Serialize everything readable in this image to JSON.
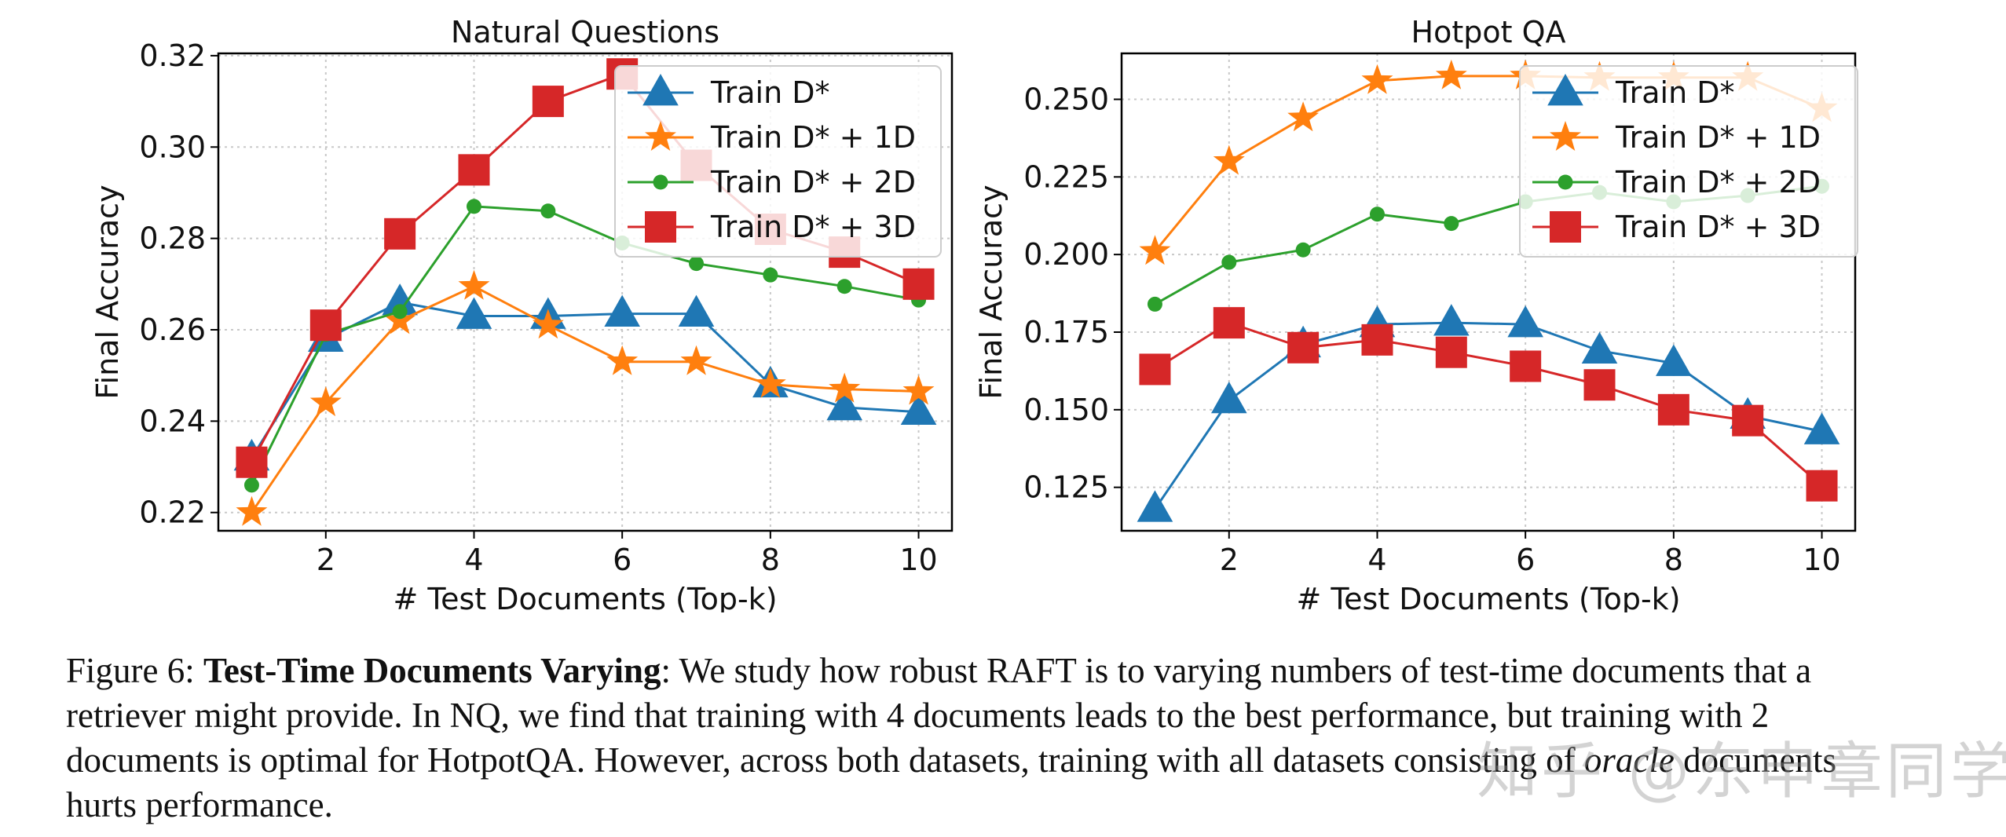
{
  "chart_data": [
    {
      "type": "line",
      "title": "Natural Questions",
      "xlabel": "# Test Documents (Top-k)",
      "ylabel": "Final Accuracy",
      "xlim": [
        0.55,
        10.45
      ],
      "ylim": [
        0.216,
        0.3205
      ],
      "xticks": [
        2,
        4,
        6,
        8,
        10
      ],
      "yticks": [
        0.22,
        0.24,
        0.26,
        0.28,
        0.3,
        0.32
      ],
      "ytick_labels": [
        "0.22",
        "0.24",
        "0.26",
        "0.28",
        "0.30",
        "0.32"
      ],
      "grid": true,
      "legend_position": "top-right",
      "x": [
        1,
        2,
        3,
        4,
        5,
        6,
        7,
        8,
        9,
        10
      ],
      "series": [
        {
          "name": "Train D*",
          "marker": "triangle",
          "color": "#1f77b4",
          "values": [
            0.232,
            0.258,
            0.266,
            0.263,
            0.263,
            0.2635,
            0.2635,
            0.248,
            0.243,
            0.242
          ]
        },
        {
          "name": "Train D* + 1D",
          "marker": "star",
          "color": "#ff7f0e",
          "values": [
            0.22,
            0.244,
            0.262,
            0.2695,
            0.261,
            0.253,
            0.253,
            0.248,
            0.247,
            0.2465
          ]
        },
        {
          "name": "Train D* + 2D",
          "marker": "circle",
          "color": "#2ca02c",
          "values": [
            0.226,
            0.259,
            0.264,
            0.287,
            0.286,
            0.279,
            0.2745,
            0.272,
            0.2695,
            0.2665
          ]
        },
        {
          "name": "Train D* + 3D",
          "marker": "square",
          "color": "#d62728",
          "values": [
            0.231,
            0.261,
            0.281,
            0.295,
            0.31,
            0.316,
            0.296,
            0.282,
            0.277,
            0.27
          ]
        }
      ]
    },
    {
      "type": "line",
      "title": "Hotpot QA",
      "xlabel": "# Test Documents (Top-k)",
      "ylabel": "Final Accuracy",
      "xlim": [
        0.55,
        10.45
      ],
      "ylim": [
        0.111,
        0.2648
      ],
      "xticks": [
        2,
        4,
        6,
        8,
        10
      ],
      "yticks": [
        0.125,
        0.15,
        0.175,
        0.2,
        0.225,
        0.25
      ],
      "ytick_labels": [
        "0.125",
        "0.150",
        "0.175",
        "0.200",
        "0.225",
        "0.250"
      ],
      "grid": true,
      "legend_position": "top-right",
      "x": [
        1,
        2,
        3,
        4,
        5,
        6,
        7,
        8,
        9,
        10
      ],
      "series": [
        {
          "name": "Train D*",
          "marker": "triangle",
          "color": "#1f77b4",
          "values": [
            0.118,
            0.153,
            0.171,
            0.1775,
            0.178,
            0.1775,
            0.169,
            0.165,
            0.148,
            0.143
          ]
        },
        {
          "name": "Train D* + 1D",
          "marker": "star",
          "color": "#ff7f0e",
          "values": [
            0.201,
            0.23,
            0.244,
            0.256,
            0.2575,
            0.2575,
            0.257,
            0.257,
            0.257,
            0.247
          ]
        },
        {
          "name": "Train D* + 2D",
          "marker": "circle",
          "color": "#2ca02c",
          "values": [
            0.184,
            0.1975,
            0.2015,
            0.213,
            0.21,
            0.217,
            0.22,
            0.217,
            0.219,
            0.222
          ]
        },
        {
          "name": "Train D* + 3D",
          "marker": "square",
          "color": "#d62728",
          "values": [
            0.163,
            0.178,
            0.17,
            0.1725,
            0.1685,
            0.164,
            0.158,
            0.15,
            0.1465,
            0.1255
          ]
        }
      ]
    }
  ],
  "caption": {
    "figure_label": "Figure 6:",
    "title": "Test-Time Documents Varying",
    "body_part1": ": We study how robust RAFT is to varying numbers of test-time documents that a retriever might provide. In NQ, we find that training with 4 documents leads to the best performance, but training with 2 documents is optimal for HotpotQA. However, across both datasets, training with all datasets consisting of ",
    "emphasis": "oracle",
    "body_part2": " documents hurts performance."
  },
  "watermark": "知乎 @东申章同学"
}
